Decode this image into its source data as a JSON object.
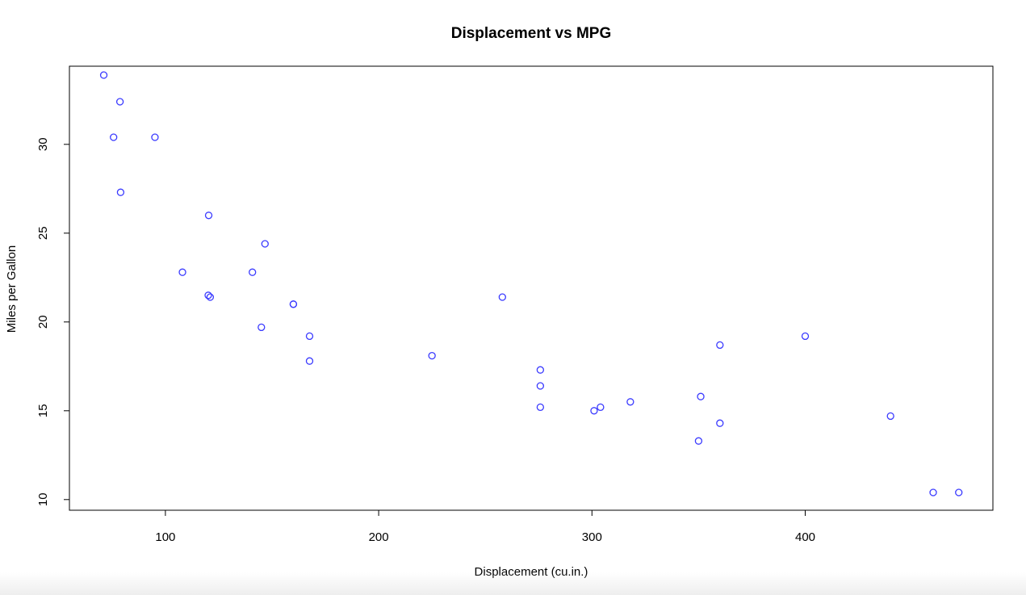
{
  "chart_data": {
    "type": "scatter",
    "title": "Displacement vs MPG",
    "xlabel": "Displacement (cu.in.)",
    "ylabel": "Miles per Gallon",
    "xlim": [
      55,
      488
    ],
    "ylim": [
      9.4,
      34.4
    ],
    "xticks": [
      100,
      200,
      300,
      400
    ],
    "yticks": [
      10,
      15,
      20,
      25,
      30
    ],
    "marker_color": "#3b3bff",
    "grid": false,
    "series": [
      {
        "points": [
          {
            "x": 71.1,
            "y": 33.9
          },
          {
            "x": 78.7,
            "y": 32.4
          },
          {
            "x": 75.7,
            "y": 30.4
          },
          {
            "x": 95.1,
            "y": 30.4
          },
          {
            "x": 79.0,
            "y": 27.3
          },
          {
            "x": 120.3,
            "y": 26.0
          },
          {
            "x": 146.7,
            "y": 24.4
          },
          {
            "x": 108.0,
            "y": 22.8
          },
          {
            "x": 140.8,
            "y": 22.8
          },
          {
            "x": 120.1,
            "y": 21.5
          },
          {
            "x": 121.0,
            "y": 21.4
          },
          {
            "x": 258.0,
            "y": 21.4
          },
          {
            "x": 160.0,
            "y": 21.0
          },
          {
            "x": 160.0,
            "y": 21.0
          },
          {
            "x": 145.0,
            "y": 19.7
          },
          {
            "x": 167.6,
            "y": 19.2
          },
          {
            "x": 400.0,
            "y": 19.2
          },
          {
            "x": 360.0,
            "y": 18.7
          },
          {
            "x": 225.0,
            "y": 18.1
          },
          {
            "x": 167.6,
            "y": 17.8
          },
          {
            "x": 275.8,
            "y": 17.3
          },
          {
            "x": 275.8,
            "y": 16.4
          },
          {
            "x": 351.0,
            "y": 15.8
          },
          {
            "x": 318.0,
            "y": 15.5
          },
          {
            "x": 304.0,
            "y": 15.2
          },
          {
            "x": 275.8,
            "y": 15.2
          },
          {
            "x": 301.0,
            "y": 15.0
          },
          {
            "x": 440.0,
            "y": 14.7
          },
          {
            "x": 360.0,
            "y": 14.3
          },
          {
            "x": 350.0,
            "y": 13.3
          },
          {
            "x": 460.0,
            "y": 10.4
          },
          {
            "x": 472.0,
            "y": 10.4
          }
        ]
      }
    ]
  }
}
